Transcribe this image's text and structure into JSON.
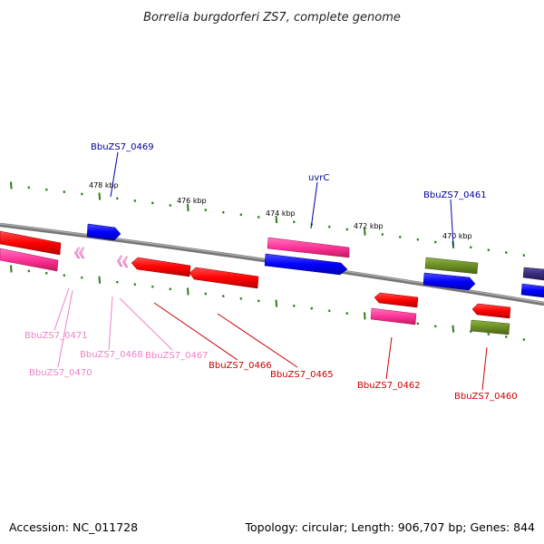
{
  "title": "Borrelia burgdorferi ZS7, complete genome",
  "footer": {
    "accession": "Accession: NC_011728",
    "summary": "Topology: circular; Length: 906,707 bp; Genes: 844"
  },
  "colors": {
    "backbone": "#808080",
    "tick": "#2e7d1a",
    "red": "#ff0000",
    "magenta": "#ff3399",
    "blue": "#0000ff",
    "olive": "#6b8e23",
    "navy": "#3a2d7a",
    "pink_label": "#ee82c8",
    "red_label": "#cc0000",
    "blue_label": "#00009c"
  },
  "kbp_labels": [
    "478 kbp",
    "476 kbp",
    "474 kbp",
    "472 kbp",
    "470 kbp"
  ],
  "gene_labels": [
    {
      "text": "BbuZS7_0469",
      "color": "blue"
    },
    {
      "text": "uvrC",
      "color": "blue"
    },
    {
      "text": "BbuZS7_0461",
      "color": "blue"
    },
    {
      "text": "BbuZS7_0471",
      "color": "pink"
    },
    {
      "text": "BbuZS7_0470",
      "color": "pink"
    },
    {
      "text": "BbuZS7_0468",
      "color": "pink"
    },
    {
      "text": "BbuZS7_0467",
      "color": "pink"
    },
    {
      "text": "BbuZS7_0466",
      "color": "red"
    },
    {
      "text": "BbuZS7_0465",
      "color": "red"
    },
    {
      "text": "BbuZS7_0462",
      "color": "red"
    },
    {
      "text": "BbuZS7_0460",
      "color": "red"
    }
  ]
}
